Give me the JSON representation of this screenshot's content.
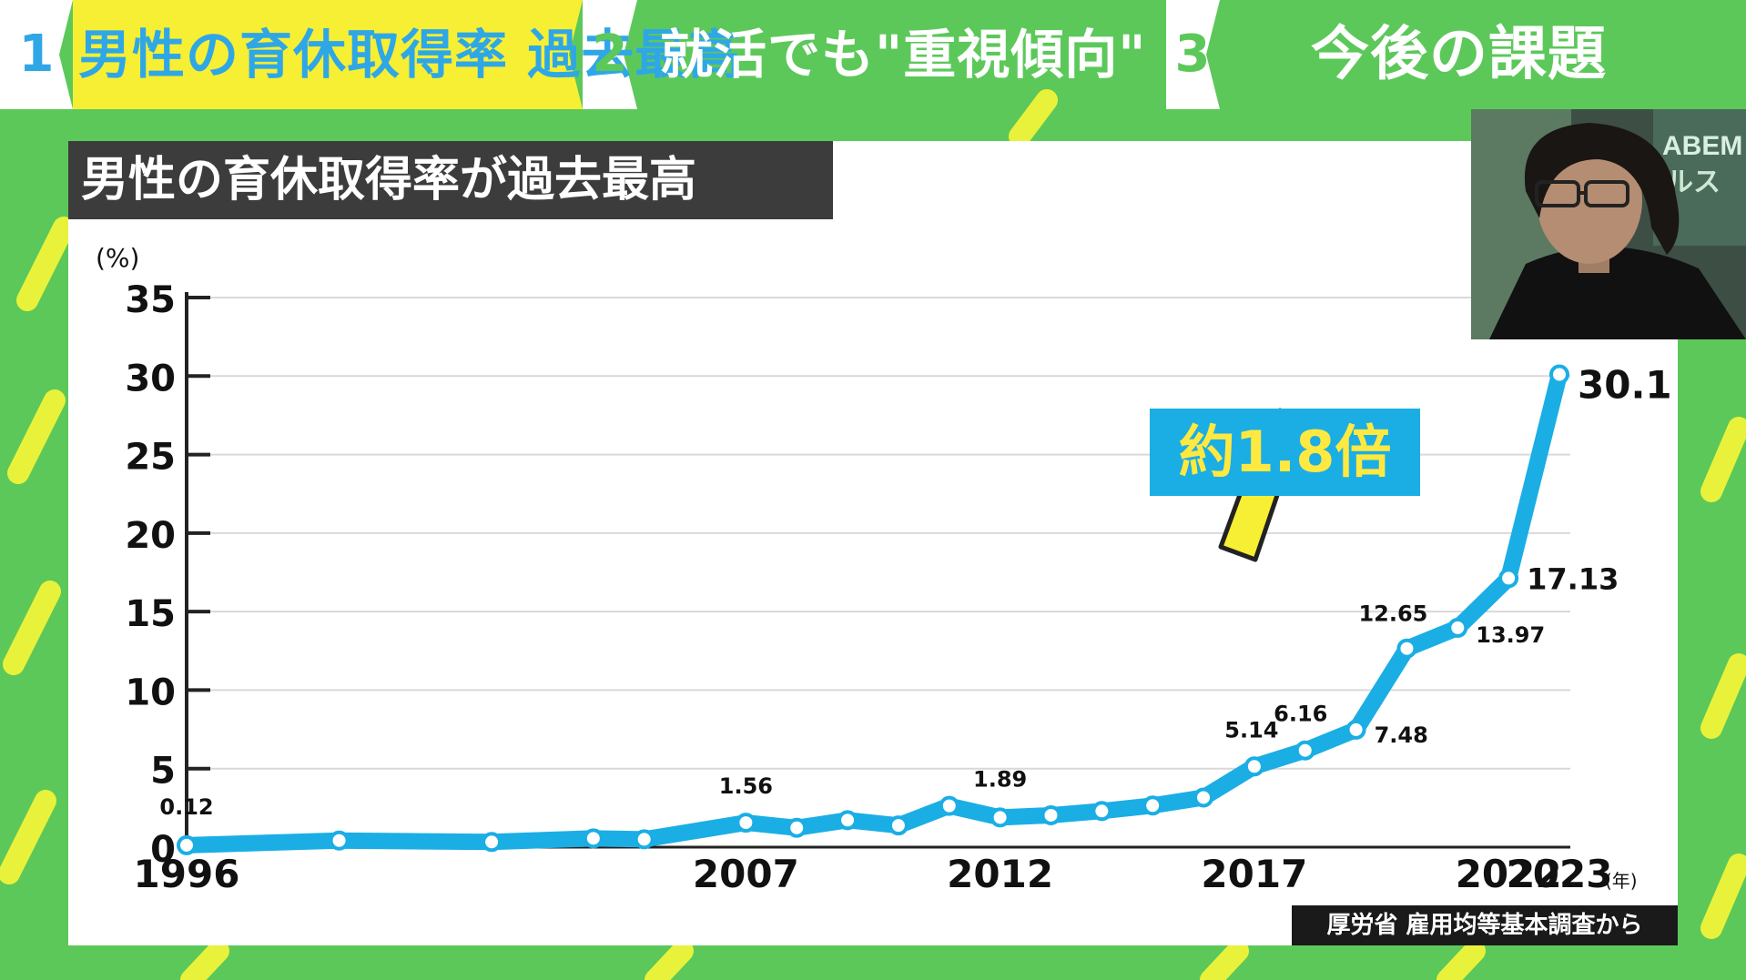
{
  "tabs": [
    {
      "num": "1",
      "label": "男性の育休取得率 過去最高",
      "active": true
    },
    {
      "num": "2",
      "label": "就活でも\"重視傾向\"",
      "active": false
    },
    {
      "num": "3",
      "label": "今後の課題",
      "active": false
    }
  ],
  "colors": {
    "background": "#5cc85a",
    "stripe": "#e9f23a",
    "active_tab": "#f7ef33",
    "tab_text": "#2fa7e6",
    "inactive_tab_text": "#ffffff",
    "line": "#1aaee5",
    "arrow": "#f7ef33"
  },
  "panel": {
    "title": "男性の育休取得率が過去最高",
    "source": "厚労省 雇用均等基本調査から"
  },
  "callout": {
    "text": "約1.8倍"
  },
  "webcam": {
    "logo_text": "ABEM",
    "logo_text_2": "ルス"
  },
  "chart_data": {
    "type": "line",
    "title": "男性の育休取得率が過去最高",
    "ylabel": "(%)",
    "xlabel": "(年)",
    "ylim": [
      0,
      35
    ],
    "yticks": [
      0,
      5,
      10,
      15,
      20,
      25,
      30,
      35
    ],
    "xlim": [
      1996,
      2023
    ],
    "xticks": [
      1996,
      2007,
      2012,
      2017,
      2022,
      2023
    ],
    "grid": true,
    "series": [
      {
        "points": [
          {
            "x": 1996,
            "y": 0.12,
            "label": "0.12"
          },
          {
            "x": 1999,
            "y": 0.42
          },
          {
            "x": 2002,
            "y": 0.33
          },
          {
            "x": 2004,
            "y": 0.56
          },
          {
            "x": 2005,
            "y": 0.5
          },
          {
            "x": 2007,
            "y": 1.56,
            "label": "1.56"
          },
          {
            "x": 2008,
            "y": 1.23
          },
          {
            "x": 2009,
            "y": 1.72
          },
          {
            "x": 2010,
            "y": 1.38
          },
          {
            "x": 2011,
            "y": 2.63
          },
          {
            "x": 2012,
            "y": 1.89,
            "label": "1.89"
          },
          {
            "x": 2013,
            "y": 2.03
          },
          {
            "x": 2014,
            "y": 2.3
          },
          {
            "x": 2015,
            "y": 2.65
          },
          {
            "x": 2016,
            "y": 3.16
          },
          {
            "x": 2017,
            "y": 5.14,
            "label": "5.14"
          },
          {
            "x": 2018,
            "y": 6.16,
            "label": "6.16"
          },
          {
            "x": 2019,
            "y": 7.48,
            "label": "7.48"
          },
          {
            "x": 2020,
            "y": 12.65,
            "label": "12.65"
          },
          {
            "x": 2021,
            "y": 13.97,
            "label": "13.97"
          },
          {
            "x": 2022,
            "y": 17.13,
            "label": "17.13"
          },
          {
            "x": 2023,
            "y": 30.1,
            "label": "30.1"
          }
        ]
      }
    ]
  }
}
